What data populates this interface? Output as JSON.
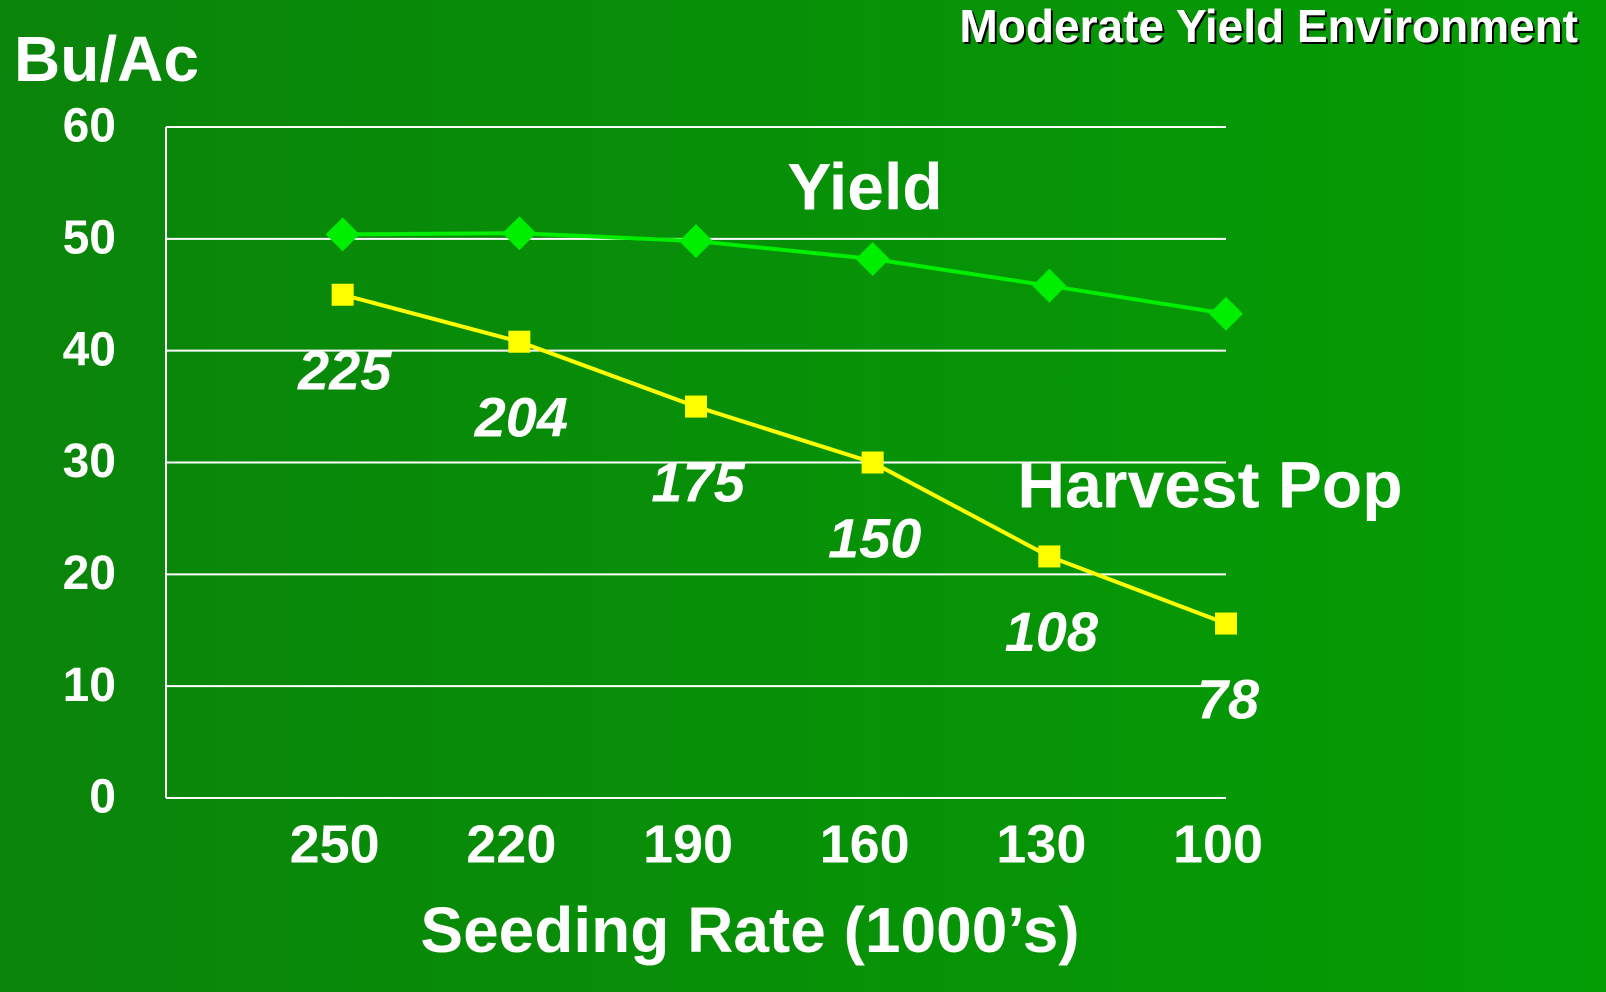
{
  "chart_data": {
    "type": "line",
    "title": "Moderate Yield Environment",
    "y_label": "Bu/Ac",
    "x_label": "Seeding Rate (1000’s)",
    "categories": [
      "250",
      "220",
      "190",
      "160",
      "130",
      "100"
    ],
    "series": [
      {
        "name": "Yield",
        "color": "#00ee00",
        "marker": "diamond",
        "values": [
          50.4,
          50.5,
          49.8,
          48.2,
          45.8,
          43.3
        ]
      },
      {
        "name": "Harvest Pop",
        "color": "#ffff00",
        "marker": "square",
        "axis": "y2",
        "values": [
          225,
          204,
          175,
          150,
          108,
          78
        ],
        "show_value_labels": true
      }
    ],
    "ylim": [
      0,
      60
    ],
    "yticks": [
      0,
      10,
      20,
      30,
      40,
      50,
      60
    ],
    "y2lim": [
      0,
      300
    ],
    "grid": true
  }
}
